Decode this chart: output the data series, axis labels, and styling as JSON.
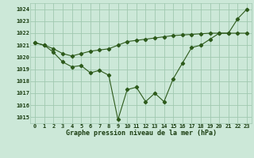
{
  "title": "Graphe pression niveau de la mer (hPa)",
  "x_labels": [
    "0",
    "1",
    "2",
    "3",
    "4",
    "5",
    "6",
    "7",
    "8",
    "9",
    "10",
    "11",
    "12",
    "13",
    "14",
    "15",
    "16",
    "17",
    "18",
    "19",
    "20",
    "21",
    "22",
    "23"
  ],
  "ylim": [
    1014.5,
    1024.5
  ],
  "yticks": [
    1015,
    1016,
    1017,
    1018,
    1019,
    1020,
    1021,
    1022,
    1023,
    1024
  ],
  "line1": [
    1021.2,
    1021.0,
    1020.4,
    1019.6,
    1019.2,
    1019.3,
    1018.7,
    1018.9,
    1018.5,
    1014.8,
    1017.3,
    1017.5,
    1016.3,
    1017.0,
    1016.3,
    1018.2,
    1019.5,
    1020.8,
    1021.0,
    1021.5,
    1022.0,
    1022.0,
    1023.2,
    1024.0
  ],
  "line2": [
    1021.2,
    1021.0,
    1020.7,
    1020.3,
    1020.1,
    1020.3,
    1020.5,
    1020.6,
    1020.7,
    1021.0,
    1021.3,
    1021.4,
    1021.5,
    1021.6,
    1021.7,
    1021.8,
    1021.85,
    1021.9,
    1021.95,
    1022.0,
    1022.0,
    1022.0,
    1022.0,
    1022.0
  ],
  "line_color": "#2d5a1b",
  "bg_color": "#cce8d8",
  "grid_color": "#a0c8b0",
  "title_color": "#1a3d10",
  "tick_color": "#1a3d10"
}
